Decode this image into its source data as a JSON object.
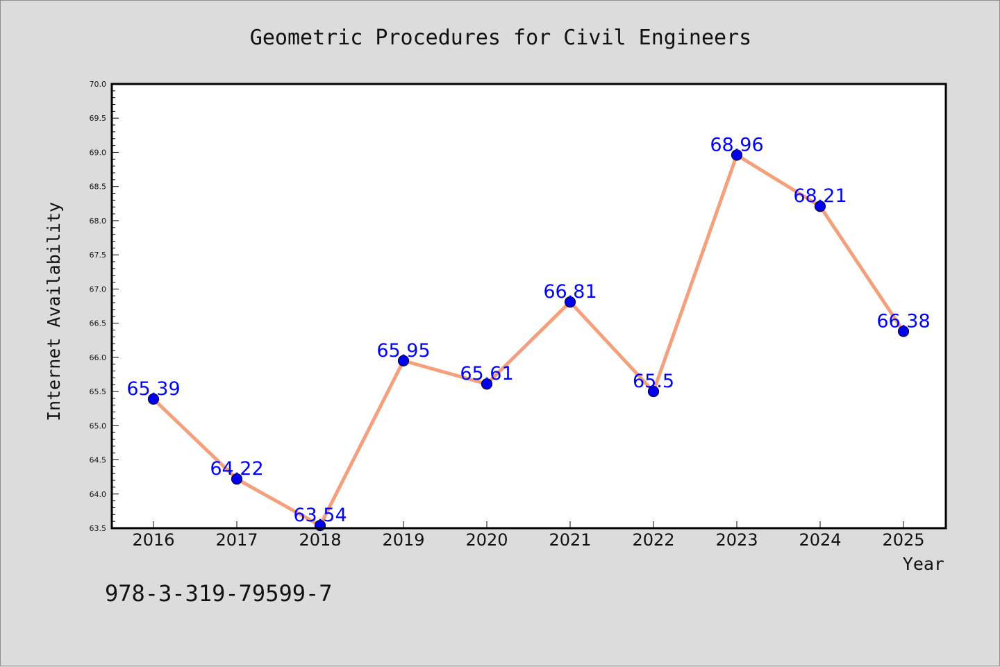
{
  "chart_data": {
    "type": "line",
    "title": "Geometric Procedures for Civil Engineers",
    "xlabel": "Year",
    "ylabel": "Internet Availability",
    "categories": [
      "2016",
      "2017",
      "2018",
      "2019",
      "2020",
      "2021",
      "2022",
      "2023",
      "2024",
      "2025"
    ],
    "series": [
      {
        "values": [
          65.39,
          64.22,
          63.54,
          65.95,
          65.61,
          66.81,
          65.5,
          68.96,
          68.21,
          66.38
        ],
        "data_labels": [
          "65.39",
          "64.22",
          "63.54",
          "65.95",
          "65.61",
          "66.81",
          "65.5",
          "68.96",
          "68.21",
          "66.38"
        ]
      }
    ],
    "ylim": [
      63.5,
      70.0
    ],
    "yticks": [
      "63.5",
      "64.0",
      "64.5",
      "65.0",
      "65.5",
      "66.0",
      "66.5",
      "67.0",
      "67.5",
      "68.0",
      "68.5",
      "69.0",
      "69.5",
      "70.0"
    ],
    "grid": false,
    "legend": "none",
    "colors": {
      "line": "#f4a07c",
      "marker": "#0000ee",
      "marker_edge": "#000033",
      "label": "#0000ff",
      "plot_background": "#ffffff",
      "figure_background": "#dcdcdc"
    }
  },
  "footer": {
    "isbn": "978-3-319-79599-7"
  }
}
